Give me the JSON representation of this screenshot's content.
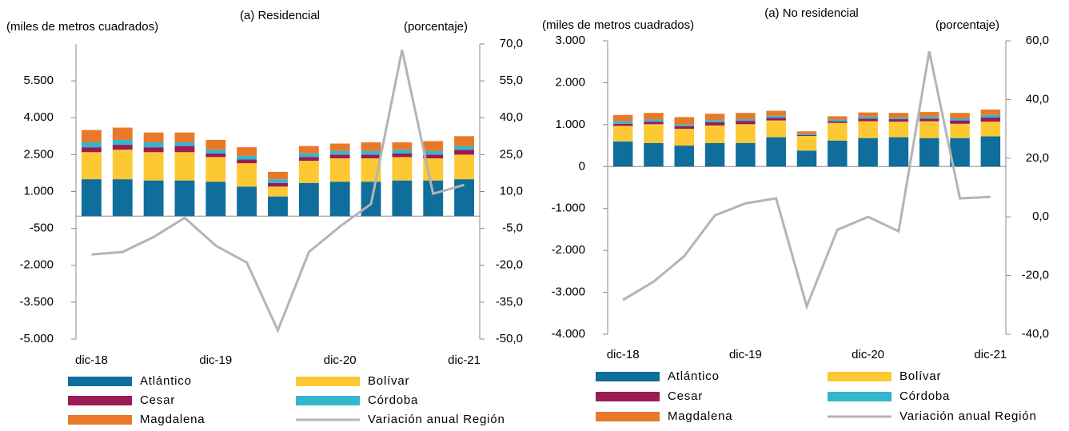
{
  "chart_data": [
    {
      "type": "bar",
      "stacked": true,
      "title": "(a) Residencial",
      "ylabel": "(miles de metros cuadrados)",
      "y2label": "(porcentaje)",
      "categories": [
        "dic-18",
        null,
        null,
        null,
        "dic-19",
        null,
        null,
        null,
        "dic-20",
        null,
        null,
        null,
        "dic-21"
      ],
      "series": [
        {
          "name": "Atlántico",
          "color": "#0f6e9c",
          "values": [
            1500,
            1500,
            1450,
            1450,
            1400,
            1200,
            800,
            1350,
            1400,
            1400,
            1450,
            1450,
            1500
          ]
        },
        {
          "name": "Bolívar",
          "color": "#fcc934",
          "values": [
            1100,
            1200,
            1150,
            1150,
            1000,
            950,
            400,
            900,
            950,
            950,
            950,
            900,
            1000
          ]
        },
        {
          "name": "Cesar",
          "color": "#9c1b55",
          "values": [
            200,
            200,
            200,
            250,
            150,
            150,
            150,
            150,
            150,
            150,
            150,
            150,
            200
          ]
        },
        {
          "name": "Córdoba",
          "color": "#33b7cc",
          "values": [
            200,
            200,
            200,
            150,
            150,
            150,
            150,
            150,
            150,
            150,
            150,
            150,
            150
          ]
        },
        {
          "name": "Magdalena",
          "color": "#e8792b",
          "values": [
            500,
            500,
            400,
            400,
            400,
            350,
            300,
            300,
            300,
            350,
            300,
            400,
            400
          ]
        },
        {
          "name": "Variación anual Región",
          "color": "#b4b4b4",
          "type": "line",
          "axis": "y2",
          "values": [
            -15.6,
            -14.6,
            -8.5,
            -0.7,
            -12,
            -18.9,
            -46.5,
            -14.6,
            -4.2,
            4.9,
            67.6,
            9.1,
            12.7
          ]
        }
      ],
      "ylim": [
        -5000,
        7000
      ],
      "yticks": [
        {
          "value": -5000,
          "label": "-5.000"
        },
        {
          "value": -3500,
          "label": "-3.500"
        },
        {
          "value": -2000,
          "label": "-2.000"
        },
        -500,
        {
          "value": 1000,
          "label": "1.000"
        },
        {
          "value": 2500,
          "label": "2.500"
        },
        {
          "value": 4000,
          "label": "4.000"
        },
        {
          "value": 5500,
          "label": "5.500"
        }
      ],
      "y2lim": [
        -50,
        70
      ],
      "y2ticks": [
        {
          "value": -50,
          "label": "-50,0"
        },
        {
          "value": -35,
          "label": "-35,0"
        },
        {
          "value": -20,
          "label": "-20,0"
        },
        {
          "value": -5,
          "label": "-5,0"
        },
        {
          "value": 10,
          "label": "10,0"
        },
        {
          "value": 25,
          "label": "25,0"
        },
        {
          "value": 40,
          "label": "40,0"
        },
        {
          "value": 55,
          "label": "55,0"
        },
        {
          "value": 70,
          "label": "70,0"
        }
      ]
    },
    {
      "type": "bar",
      "stacked": true,
      "title": "(a) No residencial",
      "ylabel": "(miles de metros cuadrados)",
      "y2label": "(porcentaje)",
      "categories": [
        "dic-18",
        null,
        null,
        null,
        "dic-19",
        null,
        null,
        null,
        "dic-20",
        null,
        null,
        null,
        "dic-21"
      ],
      "series": [
        {
          "name": "Atlántico",
          "color": "#0f6e9c",
          "values": [
            600,
            560,
            500,
            560,
            560,
            700,
            380,
            620,
            680,
            700,
            680,
            680,
            720
          ]
        },
        {
          "name": "Bolívar",
          "color": "#fcc934",
          "values": [
            370,
            450,
            400,
            420,
            450,
            400,
            350,
            420,
            400,
            370,
            400,
            340,
            350
          ]
        },
        {
          "name": "Cesar",
          "color": "#9c1b55",
          "values": [
            50,
            60,
            60,
            80,
            80,
            60,
            20,
            40,
            60,
            60,
            60,
            80,
            100
          ]
        },
        {
          "name": "Córdoba",
          "color": "#33b7cc",
          "values": [
            60,
            50,
            40,
            50,
            40,
            50,
            30,
            40,
            50,
            40,
            50,
            50,
            60
          ]
        },
        {
          "name": "Magdalena",
          "color": "#e8792b",
          "values": [
            150,
            160,
            180,
            150,
            150,
            120,
            60,
            80,
            100,
            110,
            110,
            130,
            130
          ]
        },
        {
          "name": "Variación anual Región",
          "color": "#b4b4b4",
          "type": "line",
          "axis": "y2",
          "values": [
            -28.3,
            -22.1,
            -13.4,
            0.5,
            4.6,
            6.3,
            -30.5,
            -4.4,
            0,
            -4.9,
            56.4,
            6.3,
            6.8
          ]
        }
      ],
      "ylim": [
        -4000,
        3000
      ],
      "yticks": [
        {
          "value": -4000,
          "label": "-4.000"
        },
        {
          "value": -3000,
          "label": "-3.000"
        },
        {
          "value": -2000,
          "label": "-2.000"
        },
        {
          "value": -1000,
          "label": "-1.000"
        },
        0,
        {
          "value": 1000,
          "label": "1.000"
        },
        {
          "value": 2000,
          "label": "2.000"
        },
        {
          "value": 3000,
          "label": "3.000"
        }
      ],
      "y2lim": [
        -40,
        60
      ],
      "y2ticks": [
        {
          "value": -40,
          "label": "-40,0"
        },
        {
          "value": -20,
          "label": "-20,0"
        },
        {
          "value": 0,
          "label": "0,0"
        },
        {
          "value": 20,
          "label": "20,0"
        },
        {
          "value": 40,
          "label": "40,0"
        },
        {
          "value": 60,
          "label": "60,0"
        }
      ]
    }
  ]
}
